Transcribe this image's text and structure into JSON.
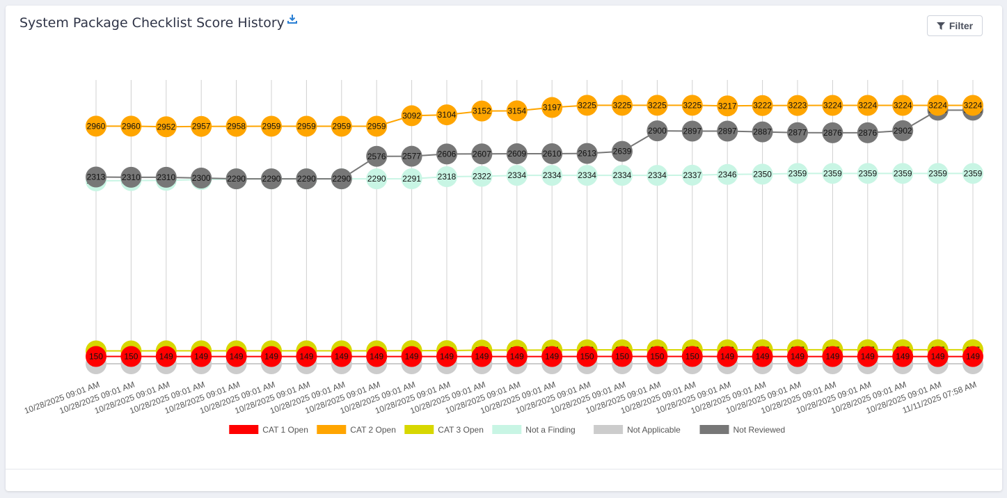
{
  "card": {
    "title": "System Package Checklist Score History",
    "filter_label": "Filter"
  },
  "chart_data": {
    "type": "line",
    "categories": [
      "10/28/2025 09:01 AM",
      "10/28/2025 09:01 AM",
      "10/28/2025 09:01 AM",
      "10/28/2025 09:01 AM",
      "10/28/2025 09:01 AM",
      "10/28/2025 09:01 AM",
      "10/28/2025 09:01 AM",
      "10/28/2025 09:01 AM",
      "10/28/2025 09:01 AM",
      "10/28/2025 09:01 AM",
      "10/28/2025 09:01 AM",
      "10/28/2025 09:01 AM",
      "10/28/2025 09:01 AM",
      "10/28/2025 09:01 AM",
      "10/28/2025 09:01 AM",
      "10/28/2025 09:01 AM",
      "10/28/2025 09:01 AM",
      "10/28/2025 09:01 AM",
      "10/28/2025 09:01 AM",
      "10/28/2025 09:01 AM",
      "10/28/2025 09:01 AM",
      "10/28/2025 09:01 AM",
      "10/28/2025 09:01 AM",
      "10/28/2025 09:01 AM",
      "10/28/2025 09:01 AM",
      "11/11/2025 07:58 AM"
    ],
    "legend_position": "bottom",
    "grid": "vertical",
    "series": [
      {
        "name": "CAT 1 Open",
        "color": "#ff0000",
        "values": [
          150,
          150,
          149,
          149,
          149,
          149,
          149,
          149,
          149,
          149,
          149,
          149,
          149,
          149,
          150,
          150,
          150,
          150,
          149,
          149,
          149,
          149,
          149,
          149,
          149,
          149
        ]
      },
      {
        "name": "CAT 2 Open",
        "color": "#ffa500",
        "values": [
          2960,
          2960,
          2952,
          2957,
          2958,
          2959,
          2959,
          2959,
          2959,
          3092,
          3104,
          3152,
          3154,
          3197,
          3225,
          3225,
          3225,
          3225,
          3217,
          3222,
          3223,
          3224,
          3224,
          3224,
          3224,
          3224
        ]
      },
      {
        "name": "CAT 3 Open",
        "color": "#d7d700",
        "values": [
          222,
          222,
          223,
          224,
          224,
          224,
          224,
          224,
          224,
          226,
          226,
          232,
          232,
          234,
          236,
          236,
          236,
          236,
          236,
          237,
          237,
          237,
          237,
          237,
          237,
          237
        ]
      },
      {
        "name": "Not a Finding",
        "color": "#c8f5e4",
        "values": [
          2265,
          2268,
          2271,
          2281,
          2290,
          2289,
          2290,
          2290,
          2290,
          2291,
          2318,
          2322,
          2334,
          2334,
          2334,
          2334,
          2334,
          2337,
          2346,
          2350,
          2359,
          2359,
          2359,
          2359,
          2359,
          2359
        ]
      },
      {
        "name": "Not Applicable",
        "color": "#cccccc",
        "values": [
          55,
          55,
          55,
          55,
          55,
          55,
          55,
          55,
          55,
          55,
          55,
          55,
          55,
          55,
          55,
          55,
          55,
          55,
          55,
          55,
          55,
          55,
          55,
          55,
          55,
          55
        ]
      },
      {
        "name": "Not Reviewed",
        "color": "#777777",
        "values": [
          2313,
          2310,
          2310,
          2300,
          2290,
          2290,
          2290,
          2290,
          2576,
          2577,
          2606,
          2607,
          2609,
          2610,
          2613,
          2639,
          2900,
          2897,
          2897,
          2887,
          2877,
          2876,
          2876,
          2902,
          3163,
          3163
        ]
      }
    ]
  }
}
